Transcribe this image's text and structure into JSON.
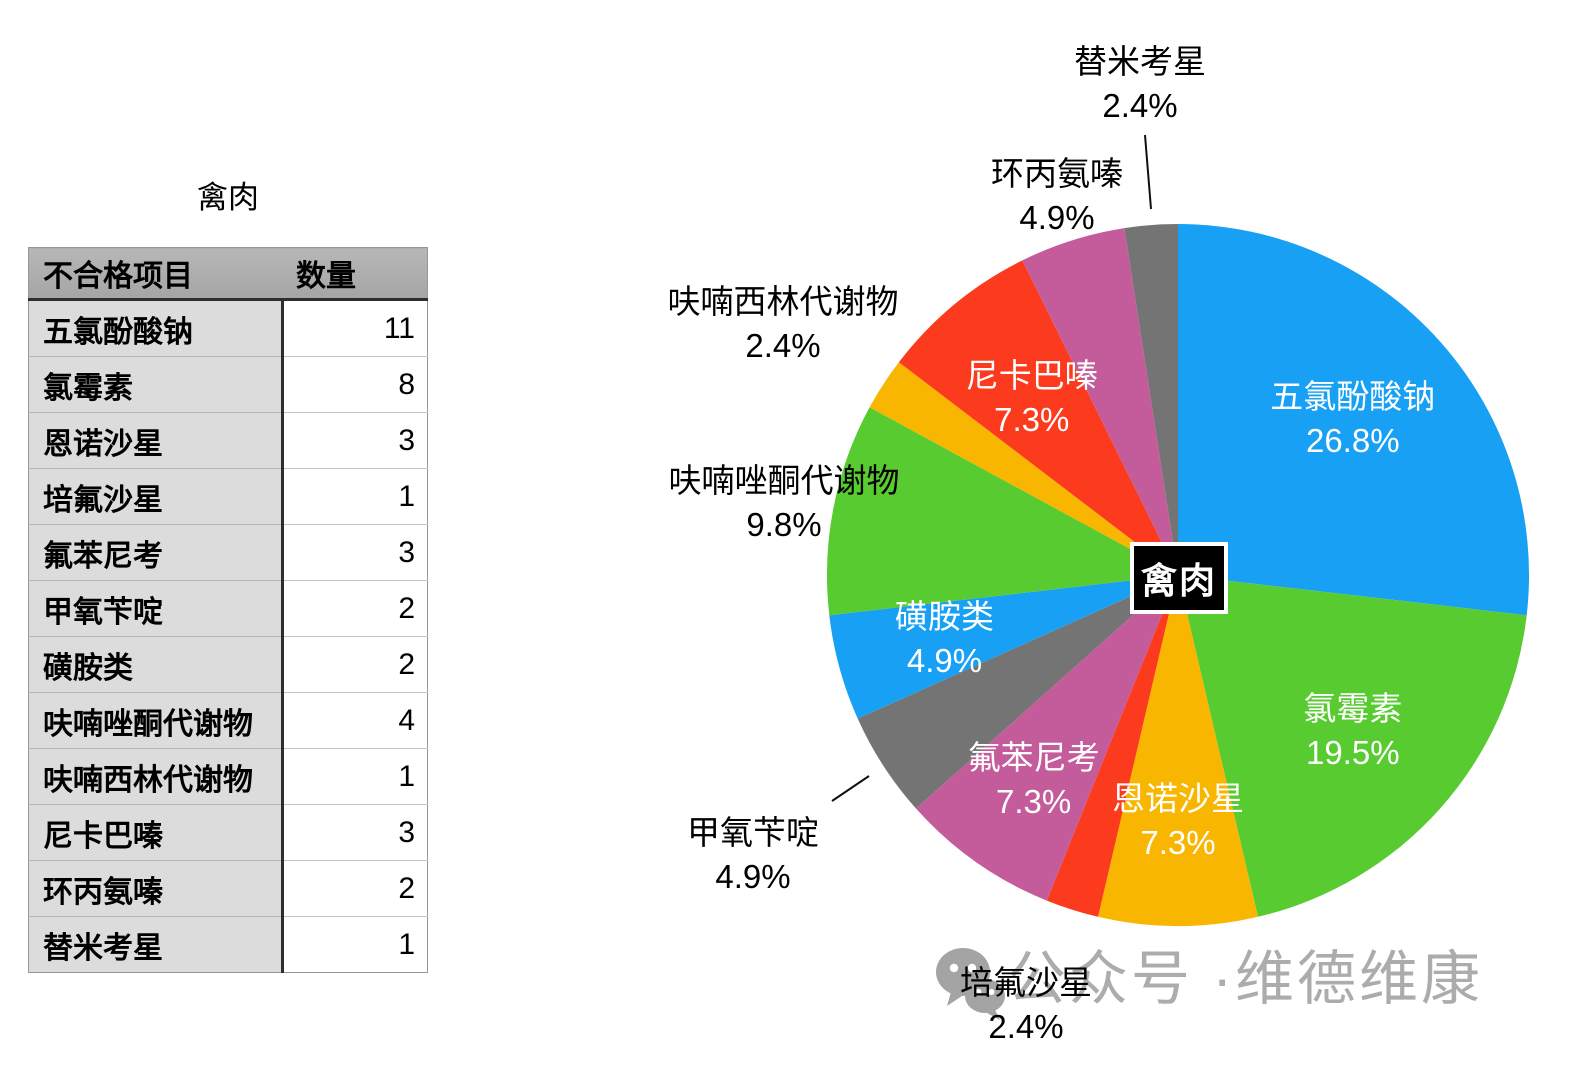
{
  "table": {
    "title": "禽肉",
    "columns": [
      "不合格项目",
      "数量"
    ],
    "rows": [
      [
        "五氯酚酸钠",
        "11"
      ],
      [
        "氯霉素",
        "8"
      ],
      [
        "恩诺沙星",
        "3"
      ],
      [
        "培氟沙星",
        "1"
      ],
      [
        "氟苯尼考",
        "3"
      ],
      [
        "甲氧苄啶",
        "2"
      ],
      [
        "磺胺类",
        "2"
      ],
      [
        "呋喃唑酮代谢物",
        "4"
      ],
      [
        "呋喃西林代谢物",
        "1"
      ],
      [
        "尼卡巴嗪",
        "3"
      ],
      [
        "环丙氨嗪",
        "2"
      ],
      [
        "替米考星",
        "1"
      ]
    ]
  },
  "chart_data": {
    "type": "pie",
    "title": "禽肉",
    "center_label": "禽肉",
    "start_angle": "12-oclock",
    "direction": "clockwise",
    "categories": [
      "五氯酚酸钠",
      "氯霉素",
      "恩诺沙星",
      "培氟沙星",
      "氟苯尼考",
      "甲氧苄啶",
      "磺胺类",
      "呋喃唑酮代谢物",
      "呋喃西林代谢物",
      "尼卡巴嗪",
      "环丙氨嗪",
      "替米考星"
    ],
    "values": [
      11,
      8,
      3,
      1,
      3,
      2,
      2,
      4,
      1,
      3,
      2,
      1
    ],
    "pct_labels": [
      "26.8%",
      "19.5%",
      "7.3%",
      "2.4%",
      "7.3%",
      "4.9%",
      "4.9%",
      "9.8%",
      "2.4%",
      "7.3%",
      "4.9%",
      "2.4%"
    ],
    "label_placement": [
      "inside",
      "inside",
      "inside",
      "outside",
      "inside",
      "outside",
      "inside",
      "outside",
      "outside",
      "inside",
      "outside",
      "outside"
    ],
    "palette": [
      "#18A0F4",
      "#57CB2F",
      "#F8B600",
      "#FB3A1E",
      "#C45C9B",
      "#747474"
    ],
    "inside_label_color": "#FFFFFF",
    "outside_label_color": "#000000"
  },
  "watermark": {
    "icon": "wechat-icon",
    "text": "公众号 ·维德维康",
    "color": "#ACACAC"
  }
}
